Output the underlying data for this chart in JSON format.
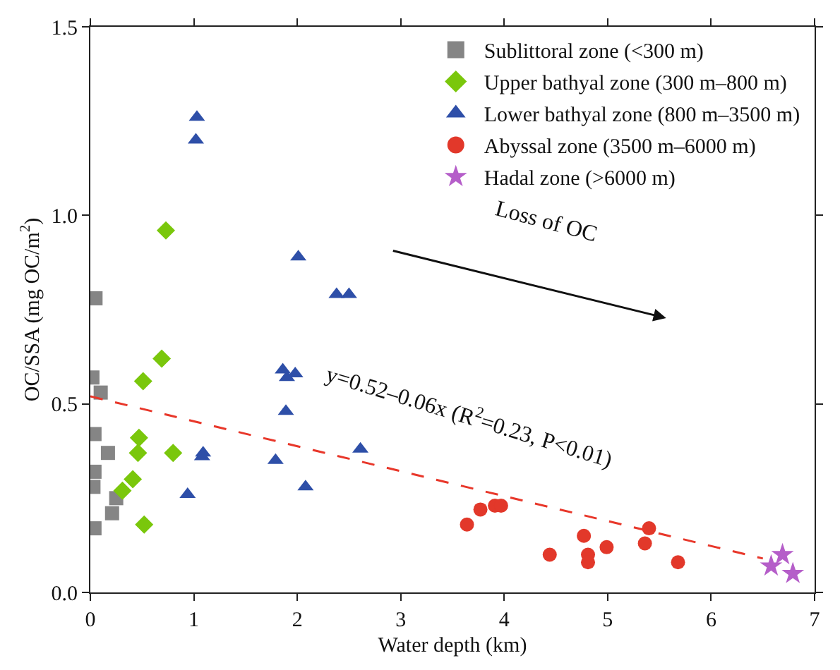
{
  "chart_data": {
    "type": "scatter",
    "xlabel": "Water depth (km)",
    "ylabel": "OC/SSA (mg OC/m$^{2}$)",
    "xlim": [
      0,
      7
    ],
    "xticks": [
      0,
      1,
      2,
      3,
      4,
      5,
      6,
      7
    ],
    "ylim": [
      0,
      1.5
    ],
    "yticks": [
      {
        "value": 0,
        "label": "0.0"
      },
      {
        "value": 0.5,
        "label": "0.5"
      },
      {
        "value": 1,
        "label": "1.0"
      },
      {
        "value": 1.5,
        "label": "1.5"
      }
    ],
    "grid": false,
    "legend": "top right",
    "series": [
      {
        "name": "Sublittoral zone (<300 m)",
        "color": "#858585",
        "marker": "square",
        "x": [
          0.05,
          0.02,
          0.1,
          0.04,
          0.17,
          0.04,
          0.03,
          0.25,
          0.21,
          0.04
        ],
        "values": [
          0.78,
          0.57,
          0.53,
          0.42,
          0.37,
          0.32,
          0.28,
          0.25,
          0.21,
          0.17
        ]
      },
      {
        "name": "Upper bathyal zone (300 m–800 m)",
        "color": "#7ac70c",
        "marker": "diamond",
        "x": [
          0.73,
          0.69,
          0.51,
          0.47,
          0.46,
          0.8,
          0.41,
          0.31,
          0.52
        ],
        "values": [
          0.96,
          0.62,
          0.56,
          0.41,
          0.37,
          0.37,
          0.3,
          0.27,
          0.18
        ]
      },
      {
        "name": "Lower bathyal zone (800 m–3500 m)",
        "color": "#2e4fa8",
        "marker": "triangle",
        "x": [
          1.03,
          1.02,
          2.01,
          2.38,
          2.5,
          1.86,
          1.98,
          1.9,
          1.89,
          2.61,
          1.09,
          1.08,
          1.79,
          0.94,
          2.08
        ],
        "values": [
          1.26,
          1.2,
          0.89,
          0.79,
          0.79,
          0.59,
          0.58,
          0.57,
          0.48,
          0.38,
          0.37,
          0.36,
          0.35,
          0.26,
          0.28
        ]
      },
      {
        "name": "Abyssal zone (3500 m–6000 m)",
        "color": "#e2382a",
        "marker": "circle",
        "x": [
          3.64,
          3.77,
          3.91,
          3.97,
          4.44,
          4.77,
          4.81,
          4.81,
          4.99,
          5.4,
          5.36,
          5.68
        ],
        "values": [
          0.18,
          0.22,
          0.23,
          0.23,
          0.1,
          0.15,
          0.1,
          0.08,
          0.12,
          0.17,
          0.13,
          0.08
        ]
      },
      {
        "name": "Hadal zone (>6000 m)",
        "color": "#b55ec9",
        "marker": "star",
        "x": [
          6.58,
          6.69,
          6.79
        ],
        "values": [
          0.07,
          0.1,
          0.05
        ]
      },
      {
        "type": "line",
        "color": "#e8372a",
        "line_style": "dashed",
        "marker": "none",
        "x": [
          0,
          6.5
        ],
        "values": [
          0.52,
          0.09
        ]
      }
    ],
    "annotations": [
      "Loss of OC",
      "y=0.52–0.06x (R$^{2}$=0.23, P<0.01)"
    ]
  }
}
